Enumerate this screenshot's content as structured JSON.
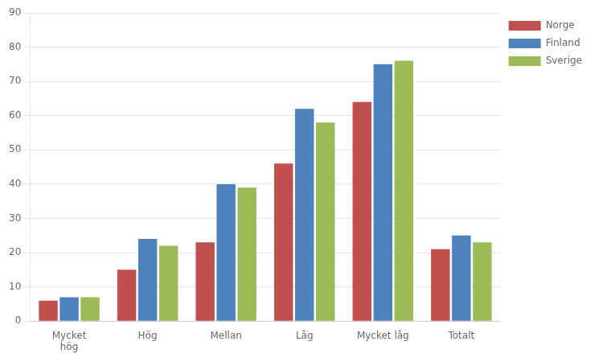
{
  "chart_data": {
    "type": "bar",
    "categories": [
      "Mycket\nhög",
      "Hög",
      "Mellan",
      "Låg",
      "Mycket låg",
      "Totalt"
    ],
    "series": [
      {
        "name": "Norge",
        "color": "#C0504D",
        "values": [
          6,
          15,
          23,
          46,
          64,
          21
        ]
      },
      {
        "name": "Finland",
        "color": "#4F81BD",
        "values": [
          7,
          24,
          40,
          62,
          75,
          25
        ]
      },
      {
        "name": "Sverige",
        "color": "#9BBB59",
        "values": [
          7,
          22,
          39,
          58,
          76,
          23
        ]
      }
    ],
    "ylim": [
      0,
      90
    ],
    "yticks": [
      0,
      10,
      20,
      30,
      40,
      50,
      60,
      70,
      80,
      90
    ],
    "grid": true,
    "legend": "right"
  }
}
